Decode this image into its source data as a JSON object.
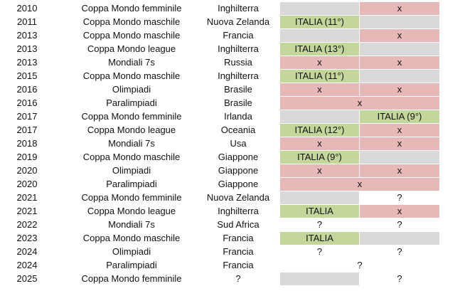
{
  "colors": {
    "green": "#c4d79b",
    "red": "#e6b8b7",
    "grey": "#d9d9d9"
  },
  "rows": [
    {
      "year": "2010",
      "event": "Coppa Mondo femminile",
      "host": "Inghilterra",
      "c1": "",
      "c1_color": "grey",
      "c2": "x",
      "c2_color": "red"
    },
    {
      "year": "2011",
      "event": "Coppa Mondo maschile",
      "host": "Nuova Zelanda",
      "c1": "ITALIA (11°)",
      "c1_color": "green",
      "c2": "",
      "c2_color": "grey"
    },
    {
      "year": "2013",
      "event": "Coppa Mondo maschile",
      "host": "Francia",
      "c1": "",
      "c1_color": "grey",
      "c2": "x",
      "c2_color": "red"
    },
    {
      "year": "2013",
      "event": "Coppa Mondo league",
      "host": "Inghilterra",
      "c1": "ITALIA (13°)",
      "c1_color": "green",
      "c2": "",
      "c2_color": "grey"
    },
    {
      "year": "2013",
      "event": "Mondiali 7s",
      "host": "Russia",
      "c1": "x",
      "c1_color": "red",
      "c2": "x",
      "c2_color": "red"
    },
    {
      "year": "2015",
      "event": "Coppa Mondo maschile",
      "host": "Inghilterra",
      "c1": "ITALIA (11°)",
      "c1_color": "green",
      "c2": "",
      "c2_color": "grey"
    },
    {
      "year": "2016",
      "event": "Olimpiadi",
      "host": "Brasile",
      "c1": "x",
      "c1_color": "red",
      "c2": "x",
      "c2_color": "red"
    },
    {
      "year": "2016",
      "event": "Paralimpiadi",
      "host": "Brasile",
      "merged": true,
      "m": "x",
      "m_color": "red"
    },
    {
      "year": "2017",
      "event": "Coppa Mondo femminile",
      "host": "Irlanda",
      "c1": "",
      "c1_color": "grey",
      "c2": "ITALIA (9°)",
      "c2_color": "green"
    },
    {
      "year": "2017",
      "event": "Coppa Mondo league",
      "host": "Oceania",
      "c1": "ITALIA (12°)",
      "c1_color": "green",
      "c2": "x",
      "c2_color": "red"
    },
    {
      "year": "2018",
      "event": "Mondiali 7s",
      "host": "Usa",
      "c1": "x",
      "c1_color": "red",
      "c2": "x",
      "c2_color": "red"
    },
    {
      "year": "2019",
      "event": "Coppa Mondo maschile",
      "host": "Giappone",
      "c1": "ITALIA (9°)",
      "c1_color": "green",
      "c2": "",
      "c2_color": "grey"
    },
    {
      "year": "2020",
      "event": "Olimpiadi",
      "host": "Giappone",
      "c1": "x",
      "c1_color": "red",
      "c2": "x",
      "c2_color": "red"
    },
    {
      "year": "2020",
      "event": "Paralimpiadi",
      "host": "Giappone",
      "merged": true,
      "m": "x",
      "m_color": "red"
    },
    {
      "year": "2021",
      "event": "Coppa Mondo femminile",
      "host": "Nuova Zelanda",
      "c1": "",
      "c1_color": "grey",
      "c2": "?",
      "c2_color": "none"
    },
    {
      "year": "2021",
      "event": "Coppa Mondo league",
      "host": "Inghilterra",
      "c1": "ITALIA",
      "c1_color": "green",
      "c2": "x",
      "c2_color": "red"
    },
    {
      "year": "2022",
      "event": "Mondiali 7s",
      "host": "Sud Africa",
      "c1": "?",
      "c1_color": "none",
      "c2": "?",
      "c2_color": "none"
    },
    {
      "year": "2023",
      "event": "Coppa Mondo maschile",
      "host": "Francia",
      "c1": "ITALIA",
      "c1_color": "green",
      "c2": "",
      "c2_color": "grey"
    },
    {
      "year": "2024",
      "event": "Olimpiadi",
      "host": "Francia",
      "c1": "?",
      "c1_color": "none",
      "c2": "?",
      "c2_color": "none"
    },
    {
      "year": "2024",
      "event": "Paralimpiadi",
      "host": "Francia",
      "merged": true,
      "m": "?",
      "m_color": "none"
    },
    {
      "year": "2025",
      "event": "Coppa Mondo femminile",
      "host": "?",
      "c1": "",
      "c1_color": "grey",
      "c2": "?",
      "c2_color": "none"
    }
  ]
}
